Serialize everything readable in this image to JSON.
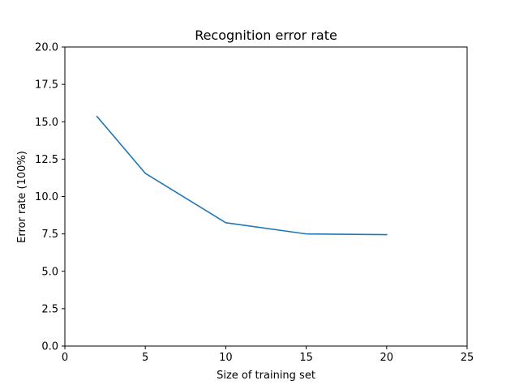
{
  "chart_data": {
    "type": "line",
    "title": "Recognition error rate",
    "xlabel": "Size of training set",
    "ylabel": "Error rate (100%)",
    "xlim": [
      0,
      25
    ],
    "ylim": [
      0,
      20
    ],
    "x_ticks": [
      "0",
      "5",
      "10",
      "15",
      "20",
      "25"
    ],
    "y_ticks": [
      "0.0",
      "2.5",
      "5.0",
      "7.5",
      "10.0",
      "12.5",
      "15.0",
      "17.5",
      "20.0"
    ],
    "grid": false,
    "legend": "none",
    "series": [
      {
        "color": "#1f77b4",
        "x": [
          2,
          5,
          10,
          15,
          20
        ],
        "y": [
          15.35,
          11.55,
          8.25,
          7.5,
          7.45
        ]
      }
    ]
  }
}
